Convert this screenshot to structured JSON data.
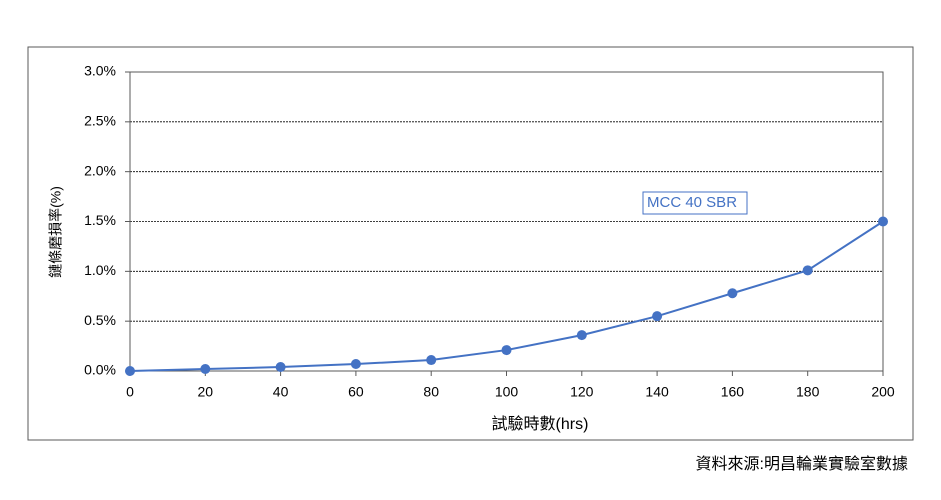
{
  "chart_data": {
    "type": "line",
    "y_label": "鏈條磨損率(%)",
    "x_label": "試驗時數(hrs)",
    "source": "資料來源:明昌輪業實驗室數據",
    "x": [
      0,
      20,
      40,
      60,
      80,
      100,
      120,
      140,
      160,
      180,
      200
    ],
    "series": [
      {
        "name": "MCC 40 SBR",
        "color": "#4472c4",
        "values": [
          0,
          0.02,
          0.04,
          0.07,
          0.11,
          0.21,
          0.36,
          0.55,
          0.78,
          1.01,
          1.5
        ]
      }
    ],
    "xlim": [
      0,
      200
    ],
    "xticks": [
      0,
      20,
      40,
      60,
      80,
      100,
      120,
      140,
      160,
      180,
      200
    ],
    "ylim": [
      0,
      3.0
    ],
    "yticks": [
      {
        "value": 0,
        "label": "0.0%"
      },
      {
        "value": 0.5,
        "label": "0.5%"
      },
      {
        "value": 1.0,
        "label": "1.0%"
      },
      {
        "value": 1.5,
        "label": "1.5%"
      },
      {
        "value": 2.0,
        "label": "2.0%"
      },
      {
        "value": 2.5,
        "label": "2.5%"
      },
      {
        "value": 3.0,
        "label": "3.0%"
      }
    ],
    "grid": true
  }
}
